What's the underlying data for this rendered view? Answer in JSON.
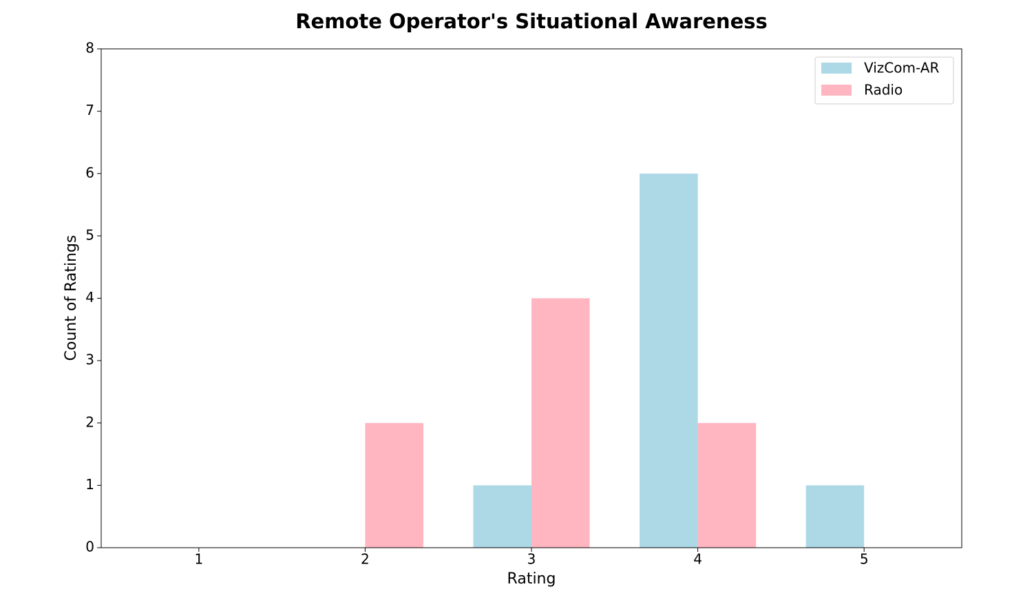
{
  "chart_data": {
    "type": "bar",
    "title": "Remote Operator's Situational Awareness",
    "x_label": "Rating",
    "y_label": "Count of Ratings",
    "x": [
      1,
      2,
      3,
      4,
      5
    ],
    "series": [
      {
        "name": "VizCom-AR",
        "color": "#add8e6",
        "values": [
          0,
          0,
          1,
          6,
          1
        ]
      },
      {
        "name": "Radio",
        "color": "#ffb6c1",
        "values": [
          0,
          2,
          4,
          2,
          0
        ]
      }
    ],
    "xlim": [
      0.413,
      5.587
    ],
    "xticks": [
      1,
      2,
      3,
      4,
      5
    ],
    "ylim": [
      0,
      8
    ],
    "yticks": [
      0,
      1,
      2,
      3,
      4,
      5,
      6,
      7,
      8
    ],
    "legend": "upper right",
    "grid": false
  }
}
